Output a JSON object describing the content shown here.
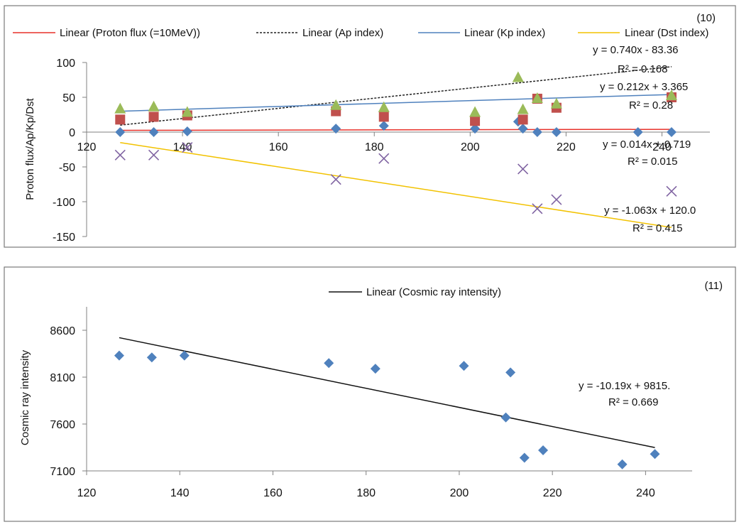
{
  "chart_data": [
    {
      "type": "scatter",
      "panel_label": "(10)",
      "ylabel": "Proton flux/Ap/Kp/Dst",
      "xlim": [
        120,
        250
      ],
      "ylim": [
        -150,
        100
      ],
      "xticks": [
        120,
        140,
        160,
        180,
        200,
        220,
        240
      ],
      "yticks": [
        -150,
        -100,
        -50,
        0,
        50,
        100
      ],
      "grid": false,
      "legend_position": "top",
      "legend": [
        {
          "label": "Linear (Proton flux (=10MeV))",
          "color": "#e8312a",
          "dash": "none"
        },
        {
          "label": "Linear (Ap index)",
          "color": "#222222",
          "dash": "3,2"
        },
        {
          "label": "Linear (Kp index)",
          "color": "#4f81bd",
          "dash": "none"
        },
        {
          "label": "Linear (Dst index)",
          "color": "#f2c200",
          "dash": "none"
        }
      ],
      "series": [
        {
          "marker": "diamond",
          "color": "#4f81bd",
          "x": [
            127,
            134,
            141,
            172,
            182,
            201,
            210,
            211,
            214,
            218,
            235,
            242
          ],
          "y": [
            0,
            0,
            1,
            5,
            9,
            5,
            15,
            5,
            0,
            0,
            0,
            0
          ]
        },
        {
          "marker": "square",
          "color": "#c0504d",
          "x": [
            127,
            134,
            141,
            172,
            182,
            201,
            211,
            214,
            218,
            242
          ],
          "y": [
            18,
            22,
            24,
            30,
            22,
            16,
            18,
            48,
            35,
            50
          ]
        },
        {
          "marker": "triangle",
          "color": "#9bbb59",
          "x": [
            127,
            134,
            141,
            172,
            182,
            201,
            210,
            211,
            214,
            218,
            242
          ],
          "y": [
            33,
            36,
            28,
            38,
            35,
            28,
            78,
            32,
            48,
            40,
            52
          ]
        },
        {
          "marker": "x",
          "color": "#8064a2",
          "x": [
            127,
            134,
            141,
            172,
            182,
            211,
            214,
            218,
            242
          ],
          "y": [
            -33,
            -33,
            -22,
            -68,
            -38,
            -53,
            -110,
            -97,
            -85
          ]
        }
      ],
      "trendlines": [
        {
          "color": "#e8312a",
          "dash": "none",
          "x": [
            127,
            242
          ],
          "y": [
            2.5,
            4.0
          ]
        },
        {
          "color": "#222222",
          "dash": "3,2",
          "x": [
            127,
            242
          ],
          "y": [
            10,
            94
          ]
        },
        {
          "color": "#4f81bd",
          "dash": "none",
          "x": [
            127,
            242
          ],
          "y": [
            30,
            54
          ]
        },
        {
          "color": "#f2c200",
          "dash": "none",
          "x": [
            127,
            242
          ],
          "y": [
            -15,
            -137
          ]
        }
      ],
      "annotations": [
        {
          "eq": "y = 0.740x - 83.36",
          "r2": "R² = 0.168"
        },
        {
          "eq": "y = 0.212x + 3.365",
          "r2": "R² = 0.28"
        },
        {
          "eq": "y = 0.014x + 0.719",
          "r2": "R² = 0.015"
        },
        {
          "eq": "y = -1.063x + 120.0",
          "r2": "R² = 0.415"
        }
      ]
    },
    {
      "type": "scatter",
      "panel_label": "(11)",
      "ylabel": "Cosmic ray intensity",
      "xlim": [
        120,
        250
      ],
      "ylim": [
        7100,
        8850
      ],
      "xticks": [
        120,
        140,
        160,
        180,
        200,
        220,
        240
      ],
      "yticks": [
        7100,
        7600,
        8100,
        8600
      ],
      "grid": false,
      "legend_position": "top",
      "legend": [
        {
          "label": "Linear (Cosmic ray intensity)",
          "color": "#111111",
          "dash": "none"
        }
      ],
      "series": [
        {
          "marker": "diamond",
          "color": "#4f81bd",
          "x": [
            127,
            134,
            141,
            172,
            182,
            201,
            210,
            211,
            214,
            218,
            235,
            242
          ],
          "y": [
            8330,
            8310,
            8330,
            8250,
            8190,
            8220,
            7670,
            8150,
            7240,
            7320,
            7170,
            7280
          ]
        }
      ],
      "trendlines": [
        {
          "color": "#111111",
          "dash": "none",
          "x": [
            127,
            242
          ],
          "y": [
            8521,
            7349
          ]
        }
      ],
      "annotations": [
        {
          "eq": "y = -10.19x + 9815.",
          "r2": "R² = 0.669"
        }
      ]
    }
  ]
}
